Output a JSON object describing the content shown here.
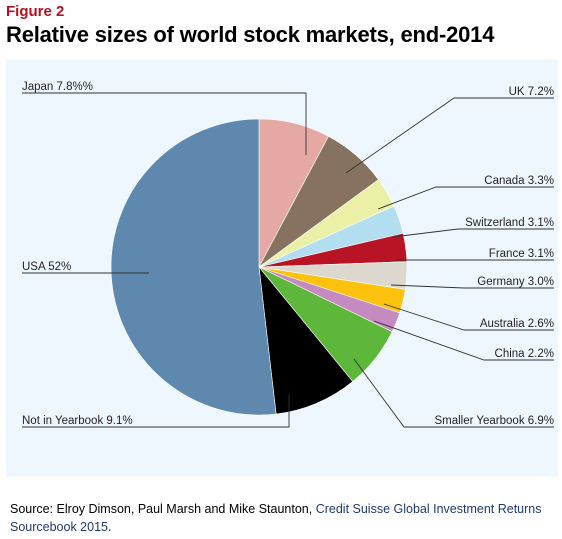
{
  "figure": {
    "label": "Figure 2",
    "title": "Relative sizes of world stock markets, end-2014"
  },
  "chart_data": {
    "type": "pie",
    "title": "Relative sizes of world stock markets, end-2014",
    "start": "top, clockwise",
    "slices": [
      {
        "label": "Japan 7.8%%",
        "name": "Japan",
        "value": 7.8,
        "color": "#e6a8a2"
      },
      {
        "label": "UK 7.2%",
        "name": "UK",
        "value": 7.2,
        "color": "#86725e"
      },
      {
        "label": "Canada 3.3%",
        "name": "Canada",
        "value": 3.3,
        "color": "#eaf0a6"
      },
      {
        "label": "Switzerland 3.1%",
        "name": "Switzerland",
        "value": 3.1,
        "color": "#b3def0"
      },
      {
        "label": "France 3.1%",
        "name": "France",
        "value": 3.1,
        "color": "#b81426"
      },
      {
        "label": "Germany 3.0%",
        "name": "Germany",
        "value": 3.0,
        "color": "#dcd8cd"
      },
      {
        "label": "Australia 2.6%",
        "name": "Australia",
        "value": 2.6,
        "color": "#fdc20e"
      },
      {
        "label": "China 2.2%",
        "name": "China",
        "value": 2.2,
        "color": "#c58ac0"
      },
      {
        "label": "Smaller Yearbook 6.9%",
        "name": "Smaller Yearbook",
        "value": 6.9,
        "color": "#5cb73a"
      },
      {
        "label": "Not in Yearbook 9.1%",
        "name": "Not in Yearbook",
        "value": 9.1,
        "color": "#000000"
      },
      {
        "label": "USA 52%",
        "name": "USA",
        "value": 52,
        "color": "#5e88ad"
      }
    ]
  },
  "source": {
    "prefix": "Source: Elroy Dimson, Paul Marsh and Mike Staunton, ",
    "reference": "Credit Suisse Global Investment Returns Sourcebook 2015",
    "suffix": "."
  }
}
